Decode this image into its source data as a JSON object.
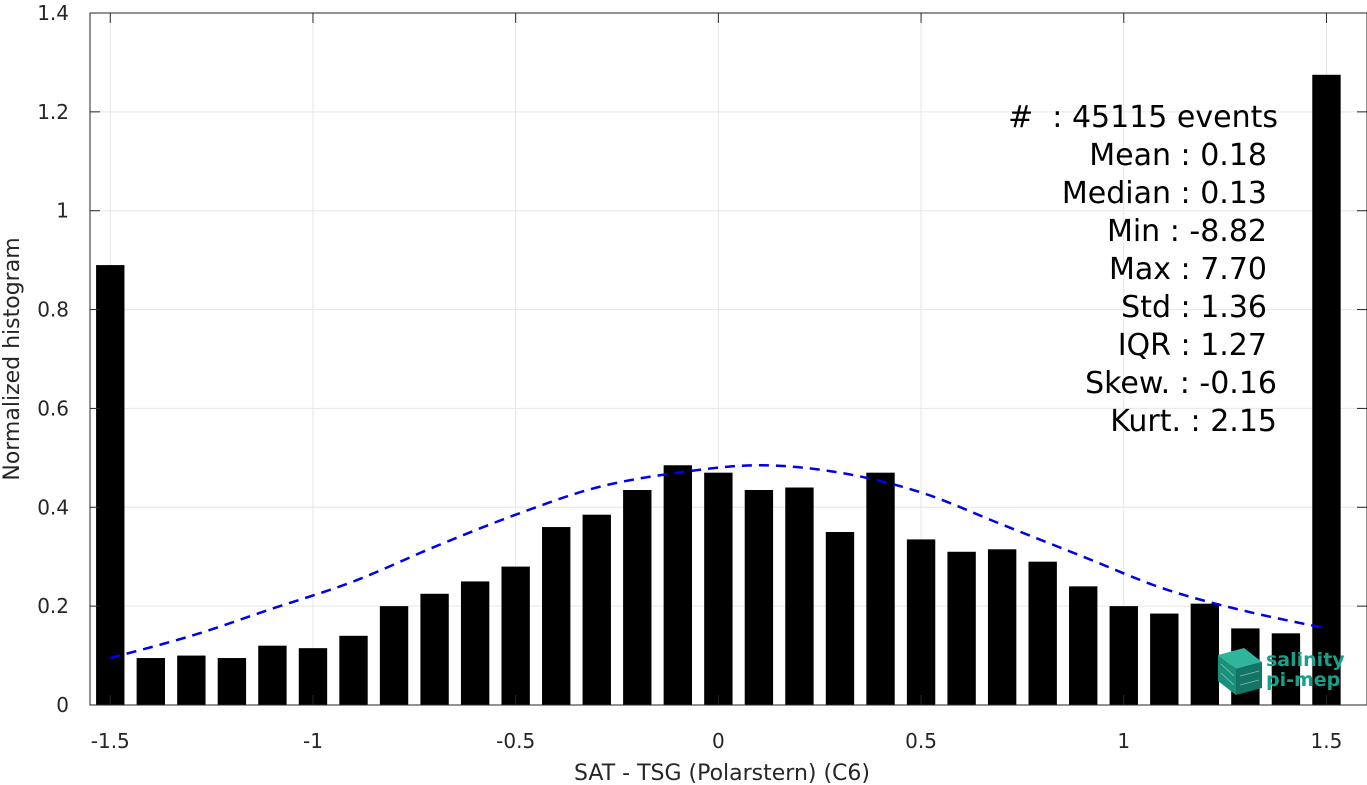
{
  "chart_data": {
    "type": "bar",
    "xlabel": "SAT - TSG (Polarstern) (C6)",
    "ylabel": "Normalized histogram",
    "xlim": [
      -1.55,
      1.6
    ],
    "ylim": [
      0,
      1.4
    ],
    "xticks": [
      -1.5,
      -1,
      -0.5,
      0,
      0.5,
      1,
      1.5
    ],
    "xtick_labels": [
      "-1.5",
      "-1",
      "-0.5",
      "0",
      "0.5",
      "1",
      "1.5"
    ],
    "yticks": [
      0,
      0.2,
      0.4,
      0.6,
      0.8,
      1,
      1.2,
      1.4
    ],
    "ytick_labels": [
      "0",
      "0.2",
      "0.4",
      "0.6",
      "0.8",
      "1",
      "1.2",
      "1.4"
    ],
    "grid": true,
    "bar_color": "#000000",
    "bar_width": 0.07,
    "bins": [
      -1.5,
      -1.4,
      -1.3,
      -1.2,
      -1.1,
      -1.0,
      -0.9,
      -0.8,
      -0.7,
      -0.6,
      -0.5,
      -0.4,
      -0.3,
      -0.2,
      -0.1,
      0.0,
      0.1,
      0.2,
      0.3,
      0.4,
      0.5,
      0.6,
      0.7,
      0.8,
      0.9,
      1.0,
      1.1,
      1.2,
      1.3,
      1.4,
      1.5
    ],
    "values": [
      0.89,
      0.095,
      0.1,
      0.095,
      0.12,
      0.115,
      0.14,
      0.2,
      0.225,
      0.25,
      0.28,
      0.36,
      0.385,
      0.435,
      0.485,
      0.47,
      0.435,
      0.44,
      0.35,
      0.47,
      0.335,
      0.31,
      0.315,
      0.29,
      0.24,
      0.2,
      0.185,
      0.205,
      0.155,
      0.145,
      1.275
    ],
    "fit": {
      "color": "#0000ee",
      "style": "dashed",
      "x": [
        -1.5,
        -1.3,
        -1.1,
        -0.9,
        -0.7,
        -0.5,
        -0.3,
        -0.1,
        0.1,
        0.3,
        0.5,
        0.7,
        0.9,
        1.1,
        1.3,
        1.5
      ],
      "y": [
        0.095,
        0.14,
        0.195,
        0.25,
        0.32,
        0.385,
        0.44,
        0.47,
        0.485,
        0.47,
        0.43,
        0.365,
        0.3,
        0.235,
        0.19,
        0.155
      ]
    }
  },
  "stats": [
    "#  : 45115 events",
    "Mean : 0.18",
    "Median : 0.13",
    "Min : -8.82",
    "Max : 7.70",
    "Std : 1.36",
    "IQR : 1.27",
    "Skew. : -0.16",
    "Kurt. : 2.15"
  ],
  "logo": {
    "line1": "salinity",
    "line2": "pi-mep",
    "color": "#1aa08a",
    "icon": "salinity-cube-icon"
  }
}
